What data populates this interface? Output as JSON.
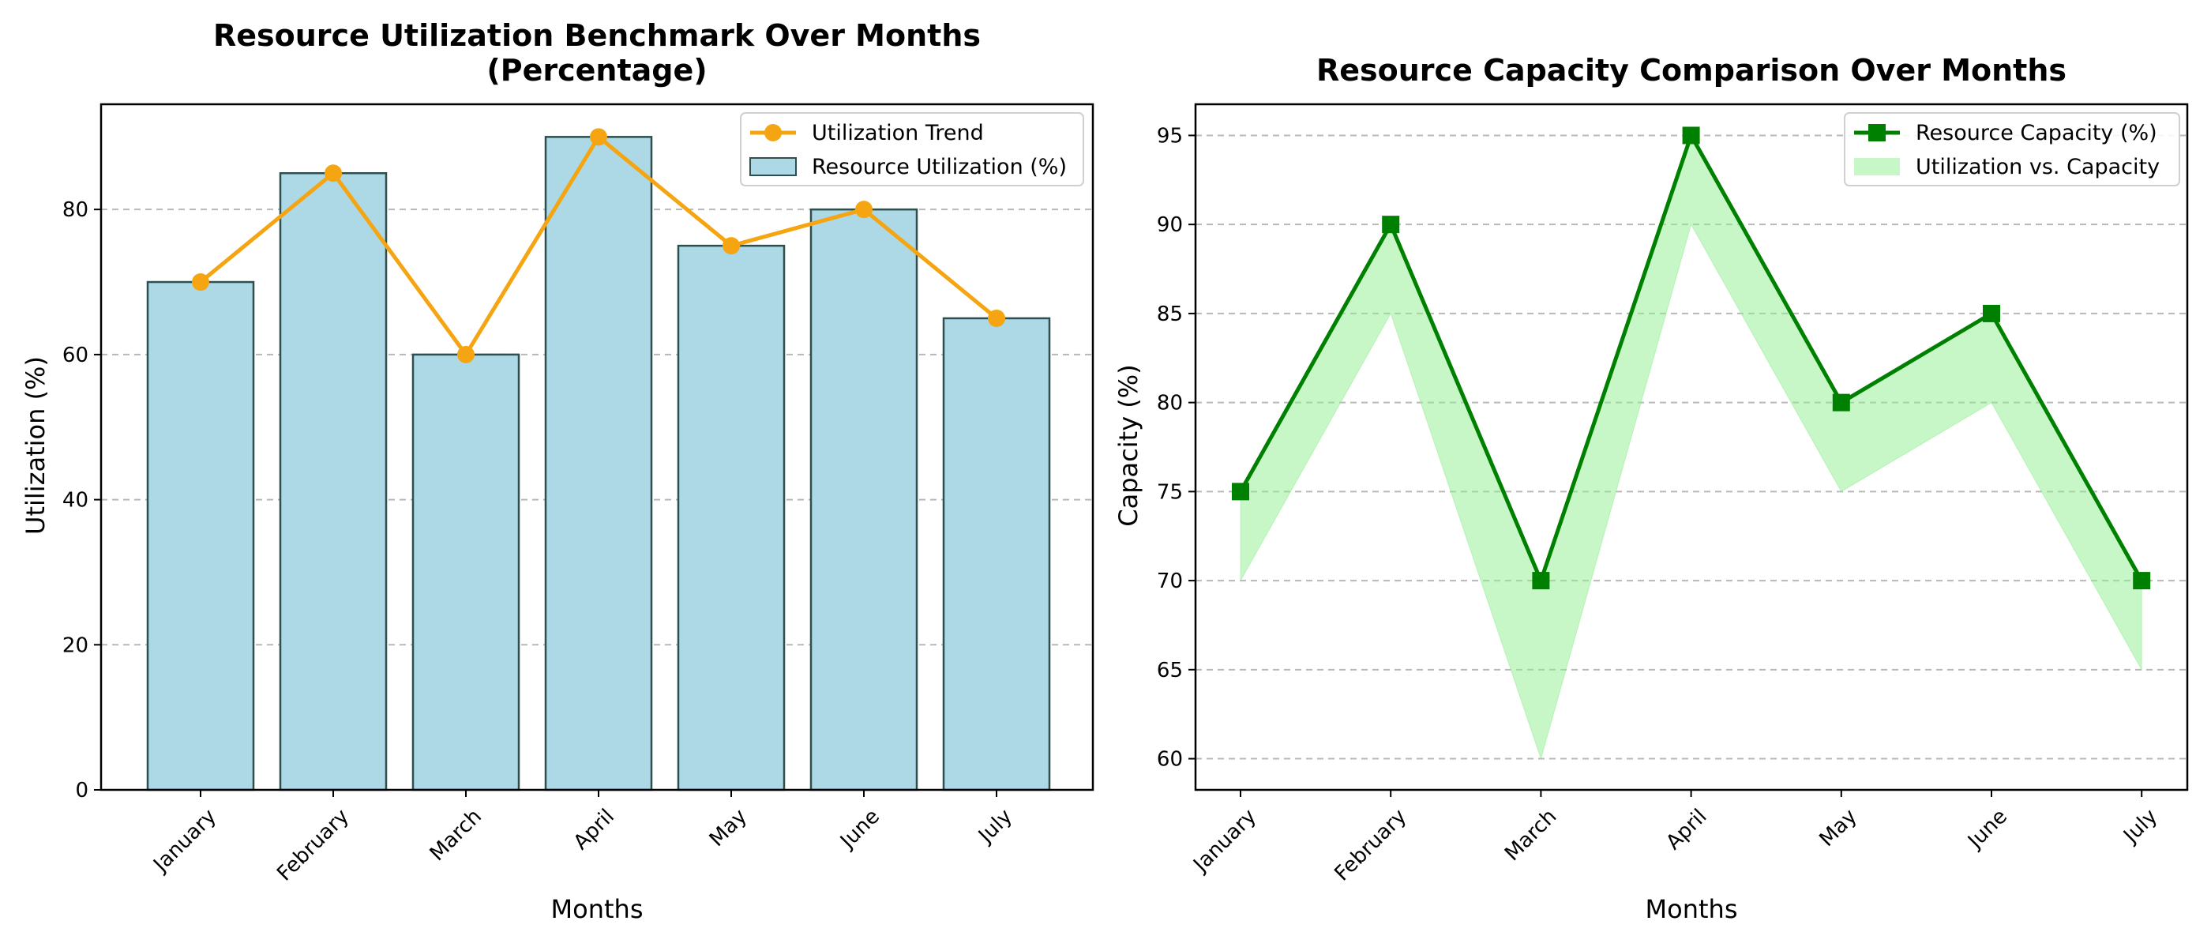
{
  "chart_data": [
    {
      "type": "bar",
      "title_line1": "Resource Utilization Benchmark Over Months",
      "title_line2": "(Percentage)",
      "xlabel": "Months",
      "ylabel": "Utilization (%)",
      "categories": [
        "January",
        "February",
        "March",
        "April",
        "May",
        "June",
        "July"
      ],
      "ylim": [
        0,
        94.5
      ],
      "yticks": [
        0,
        20,
        40,
        60,
        80
      ],
      "grid": "y-dashed",
      "legend_position": "top-right",
      "series": [
        {
          "name": "Resource Utilization (%)",
          "kind": "bar",
          "color": "#add8e6",
          "edge_color": "#2f4f4f",
          "values": [
            70,
            85,
            60,
            90,
            75,
            80,
            65
          ]
        },
        {
          "name": "Utilization Trend",
          "kind": "line",
          "color": "#f5a511",
          "marker": "circle",
          "values": [
            70,
            85,
            60,
            90,
            75,
            80,
            65
          ]
        }
      ]
    },
    {
      "type": "line",
      "title": "Resource Capacity Comparison Over Months",
      "xlabel": "Months",
      "ylabel": "Capacity (%)",
      "categories": [
        "January",
        "February",
        "March",
        "April",
        "May",
        "June",
        "July"
      ],
      "ylim": [
        58.25,
        96.75
      ],
      "yticks": [
        60,
        65,
        70,
        75,
        80,
        85,
        90,
        95
      ],
      "grid": "y-dashed",
      "legend_position": "top-right",
      "series": [
        {
          "name": "Resource Capacity (%)",
          "kind": "line",
          "color": "#008000",
          "marker": "square",
          "values": [
            75,
            90,
            70,
            95,
            80,
            85,
            70
          ]
        },
        {
          "name": "Utilization vs. Capacity",
          "kind": "fill_between",
          "color": "#90ee90",
          "lower": [
            70,
            85,
            60,
            90,
            75,
            80,
            65
          ],
          "upper": [
            75,
            90,
            70,
            95,
            80,
            85,
            70
          ]
        }
      ]
    }
  ]
}
